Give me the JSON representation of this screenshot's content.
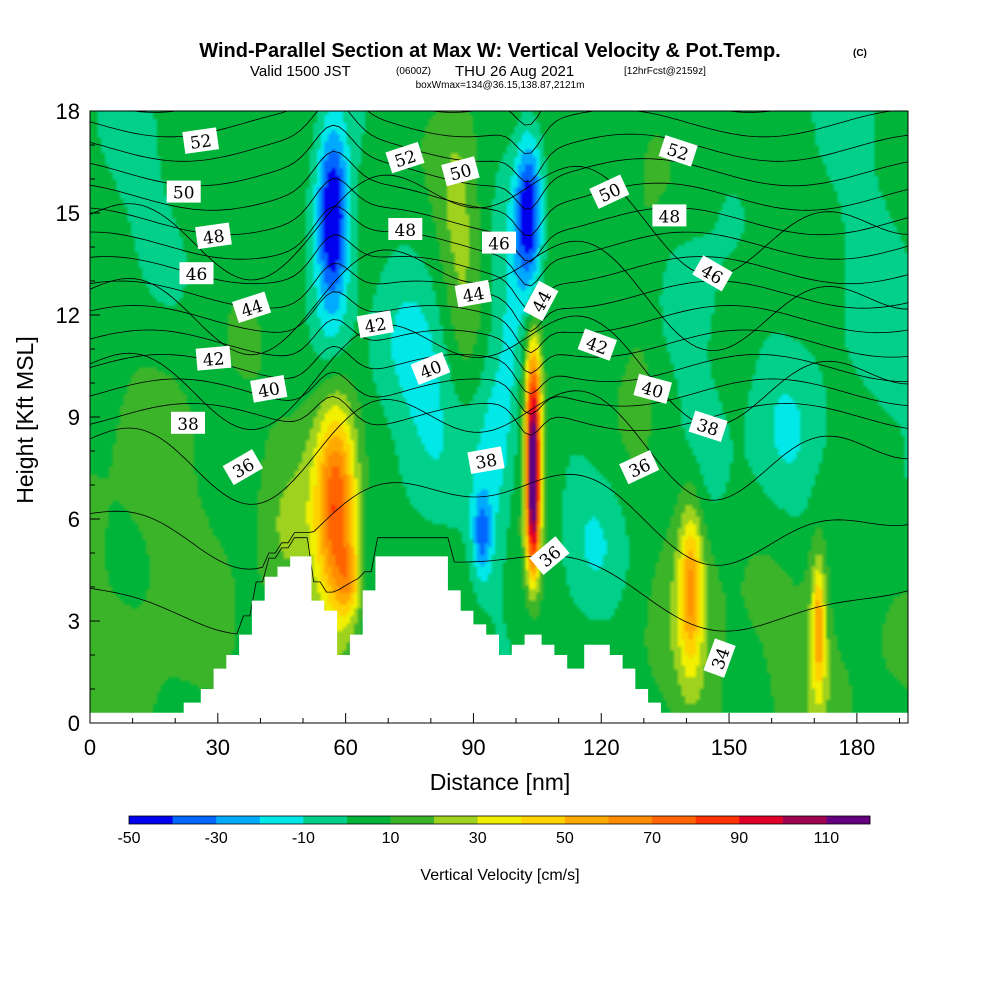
{
  "header": {
    "title": "Wind-Parallel Section at Max W: Vertical Velocity & Pot.Temp.",
    "title_units": "(C)",
    "valid_prefix": "Valid 1500 JST",
    "valid_utc": "(0600Z)",
    "valid_date": "THU 26 Aug 2021",
    "forecast": "[12hrFcst@2159z]",
    "box_info": "boxWmax=134@36.15,138.87,2121m"
  },
  "chart_data": {
    "type": "heatmap",
    "xlabel": "Distance [nm]",
    "ylabel": "Height [Kft MSL]",
    "xlim": [
      0,
      192
    ],
    "ylim": [
      0,
      18
    ],
    "x_ticks": [
      0,
      30,
      60,
      90,
      120,
      150,
      180
    ],
    "y_ticks": [
      0,
      3,
      6,
      9,
      12,
      15,
      18
    ],
    "colorbar": {
      "label": "Vertical Velocity [cm/s]",
      "levels": [
        -50,
        -40,
        -30,
        -20,
        -10,
        0,
        10,
        20,
        30,
        40,
        50,
        60,
        70,
        80,
        90,
        100,
        110,
        120
      ],
      "tick_labels": [
        "-50",
        "-30",
        "-10",
        "10",
        "30",
        "50",
        "70",
        "90",
        "110"
      ],
      "colors": [
        "#0000ee",
        "#0066ff",
        "#00aaff",
        "#00e8e8",
        "#00d08a",
        "#00b43a",
        "#3cb42a",
        "#9ed21e",
        "#f0f000",
        "#ffd200",
        "#ffaa00",
        "#ff8c00",
        "#ff6400",
        "#ff3200",
        "#e00028",
        "#a00050",
        "#640080"
      ]
    },
    "terrain_kft": [
      [
        0,
        0.3
      ],
      [
        22,
        0.3
      ],
      [
        22,
        0.6
      ],
      [
        26,
        0.6
      ],
      [
        26,
        1.0
      ],
      [
        29,
        1.0
      ],
      [
        29,
        1.6
      ],
      [
        32,
        1.6
      ],
      [
        32,
        2.0
      ],
      [
        35,
        2.0
      ],
      [
        35,
        2.6
      ],
      [
        38,
        2.6
      ],
      [
        38,
        3.6
      ],
      [
        41,
        3.6
      ],
      [
        41,
        4.3
      ],
      [
        44,
        4.3
      ],
      [
        44,
        4.6
      ],
      [
        47,
        4.6
      ],
      [
        47,
        4.9
      ],
      [
        52,
        4.9
      ],
      [
        52,
        3.6
      ],
      [
        55,
        3.6
      ],
      [
        55,
        3.3
      ],
      [
        58,
        3.3
      ],
      [
        58,
        2.0
      ],
      [
        61,
        2.0
      ],
      [
        61,
        2.6
      ],
      [
        64,
        2.6
      ],
      [
        64,
        3.9
      ],
      [
        67,
        3.9
      ],
      [
        67,
        4.9
      ],
      [
        84,
        4.9
      ],
      [
        84,
        3.9
      ],
      [
        87,
        3.9
      ],
      [
        87,
        3.3
      ],
      [
        90,
        3.3
      ],
      [
        90,
        2.9
      ],
      [
        93,
        2.9
      ],
      [
        93,
        2.6
      ],
      [
        96,
        2.6
      ],
      [
        96,
        2.0
      ],
      [
        99,
        2.0
      ],
      [
        99,
        2.3
      ],
      [
        102,
        2.3
      ],
      [
        102,
        2.6
      ],
      [
        106,
        2.6
      ],
      [
        106,
        2.3
      ],
      [
        109,
        2.3
      ],
      [
        109,
        2.0
      ],
      [
        112,
        2.0
      ],
      [
        112,
        1.6
      ],
      [
        116,
        1.6
      ],
      [
        116,
        2.3
      ],
      [
        122,
        2.3
      ],
      [
        122,
        2.0
      ],
      [
        125,
        2.0
      ],
      [
        125,
        1.6
      ],
      [
        128,
        1.6
      ],
      [
        128,
        1.0
      ],
      [
        131,
        1.0
      ],
      [
        131,
        0.6
      ],
      [
        134,
        0.6
      ],
      [
        134,
        0.3
      ],
      [
        144,
        0.3
      ],
      [
        144,
        0.3
      ],
      [
        192,
        0.3
      ]
    ],
    "wfield_note_omitted": true,
    "w_features": [
      {
        "x": 57,
        "y": 15.0,
        "sx": 2.6,
        "sy": 1.8,
        "w": -55
      },
      {
        "x": 56,
        "y": 12.0,
        "sx": 4.0,
        "sy": 2.5,
        "w": -25
      },
      {
        "x": 103,
        "y": 15.0,
        "sx": 2.2,
        "sy": 1.6,
        "w": -50
      },
      {
        "x": 101,
        "y": 12.0,
        "sx": 3.5,
        "sy": 2.5,
        "w": -22
      },
      {
        "x": 95,
        "y": 8.5,
        "sx": 4.0,
        "sy": 2.8,
        "w": -18
      },
      {
        "x": 92,
        "y": 5.5,
        "sx": 1.6,
        "sy": 0.9,
        "w": -32
      },
      {
        "x": 80,
        "y": 8.5,
        "sx": 8.0,
        "sy": 1.8,
        "w": -14
      },
      {
        "x": 75,
        "y": 11.0,
        "sx": 7.0,
        "sy": 1.5,
        "w": -14
      },
      {
        "x": 118,
        "y": 5.5,
        "sx": 6.0,
        "sy": 1.6,
        "w": -14
      },
      {
        "x": 143,
        "y": 8.5,
        "sx": 4.5,
        "sy": 2.0,
        "w": -14
      },
      {
        "x": 163,
        "y": 8.0,
        "sx": 7.0,
        "sy": 2.0,
        "w": -14
      },
      {
        "x": 140,
        "y": 12.5,
        "sx": 6.0,
        "sy": 1.5,
        "w": -12
      },
      {
        "x": 58,
        "y": 6.3,
        "sx": 3.2,
        "sy": 2.2,
        "w": 62
      },
      {
        "x": 55,
        "y": 8.3,
        "sx": 4.5,
        "sy": 3.5,
        "w": 22
      },
      {
        "x": 61,
        "y": 4.2,
        "sx": 2.0,
        "sy": 0.8,
        "w": 32
      },
      {
        "x": 104,
        "y": 7.3,
        "sx": 1.1,
        "sy": 1.3,
        "w": 115
      },
      {
        "x": 104,
        "y": 9.8,
        "sx": 1.4,
        "sy": 1.3,
        "w": 60
      },
      {
        "x": 104,
        "y": 5.2,
        "sx": 1.2,
        "sy": 1.0,
        "w": 45
      },
      {
        "x": 103,
        "y": 10.5,
        "sx": 3.0,
        "sy": 3.0,
        "w": 18
      },
      {
        "x": 141,
        "y": 4.0,
        "sx": 1.8,
        "sy": 1.6,
        "w": 38
      },
      {
        "x": 141,
        "y": 5.0,
        "sx": 3.5,
        "sy": 3.0,
        "w": 16
      },
      {
        "x": 171,
        "y": 2.8,
        "sx": 1.0,
        "sy": 1.2,
        "w": 38
      },
      {
        "x": 171,
        "y": 3.0,
        "sx": 2.0,
        "sy": 2.5,
        "w": 14
      },
      {
        "x": 88,
        "y": 12.5,
        "sx": 4.0,
        "sy": 3.5,
        "w": 12
      },
      {
        "x": 86,
        "y": 15.5,
        "sx": 3.0,
        "sy": 2.0,
        "w": 10
      },
      {
        "x": 130,
        "y": 12.0,
        "sx": 4.0,
        "sy": 2.5,
        "w": 10
      },
      {
        "x": 45,
        "y": 5.5,
        "sx": 4.0,
        "sy": 2.0,
        "w": 10
      },
      {
        "x": 160,
        "y": 2.0,
        "sx": 25.0,
        "sy": 2.5,
        "w": 8
      },
      {
        "x": 15,
        "y": 5.0,
        "sx": 15.0,
        "sy": 5.0,
        "w": 9
      },
      {
        "x": 10,
        "y": 15.0,
        "sx": 10.0,
        "sy": 3.0,
        "w": -8
      },
      {
        "x": 185,
        "y": 14.0,
        "sx": 8.0,
        "sy": 6.0,
        "w": -8
      }
    ],
    "theta_contours": {
      "units": "C",
      "levels": [
        34,
        35,
        36,
        37,
        38,
        39,
        40,
        41,
        42,
        43,
        44,
        45,
        46,
        47,
        48,
        49,
        50,
        51,
        52,
        53
      ],
      "labels": [
        {
          "text": "52",
          "x": 26,
          "y": 17.1,
          "angle": -8
        },
        {
          "text": "50",
          "x": 22,
          "y": 15.6,
          "angle": 0
        },
        {
          "text": "48",
          "x": 29,
          "y": 14.3,
          "angle": -8
        },
        {
          "text": "46",
          "x": 25,
          "y": 13.2,
          "angle": 0
        },
        {
          "text": "44",
          "x": 38,
          "y": 12.2,
          "angle": -18
        },
        {
          "text": "42",
          "x": 29,
          "y": 10.7,
          "angle": -5
        },
        {
          "text": "40",
          "x": 42,
          "y": 9.8,
          "angle": -10
        },
        {
          "text": "38",
          "x": 23,
          "y": 8.8,
          "angle": 0
        },
        {
          "text": "36",
          "x": 36,
          "y": 7.5,
          "angle": -30
        },
        {
          "text": "52",
          "x": 74,
          "y": 16.6,
          "angle": -18
        },
        {
          "text": "50",
          "x": 87,
          "y": 16.2,
          "angle": -15
        },
        {
          "text": "48",
          "x": 74,
          "y": 14.5,
          "angle": 0
        },
        {
          "text": "46",
          "x": 96,
          "y": 14.1,
          "angle": 0
        },
        {
          "text": "44",
          "x": 90,
          "y": 12.6,
          "angle": -10
        },
        {
          "text": "44",
          "x": 106,
          "y": 12.4,
          "angle": -62
        },
        {
          "text": "42",
          "x": 67,
          "y": 11.7,
          "angle": -10
        },
        {
          "text": "40",
          "x": 80,
          "y": 10.4,
          "angle": -22
        },
        {
          "text": "38",
          "x": 93,
          "y": 7.7,
          "angle": -10
        },
        {
          "text": "36",
          "x": 108,
          "y": 4.9,
          "angle": -40
        },
        {
          "text": "52",
          "x": 138,
          "y": 16.8,
          "angle": 18
        },
        {
          "text": "50",
          "x": 122,
          "y": 15.6,
          "angle": -25
        },
        {
          "text": "48",
          "x": 136,
          "y": 14.9,
          "angle": 0
        },
        {
          "text": "46",
          "x": 146,
          "y": 13.2,
          "angle": 30
        },
        {
          "text": "42",
          "x": 119,
          "y": 11.1,
          "angle": 20
        },
        {
          "text": "40",
          "x": 132,
          "y": 9.8,
          "angle": 15
        },
        {
          "text": "38",
          "x": 145,
          "y": 8.7,
          "angle": 18
        },
        {
          "text": "36",
          "x": 129,
          "y": 7.5,
          "angle": -25
        },
        {
          "text": "34",
          "x": 148,
          "y": 1.9,
          "angle": -70
        }
      ]
    }
  }
}
